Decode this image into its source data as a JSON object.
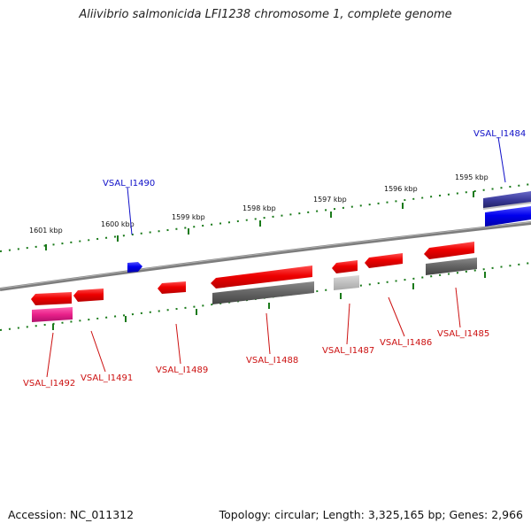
{
  "title": "Aliivibrio salmonicida LFI1238 chromosome 1, complete genome",
  "footer": {
    "accession": "Accession: NC_011312",
    "summary": "Topology: circular; Length: 3,325,165 bp; Genes: 2,966"
  },
  "colors": {
    "forward_gene": "#0000ee",
    "forward_label": "#1010c8",
    "reverse_gene": "#e00000",
    "reverse_label": "#cc1010",
    "pseudo_gene": "#e0207a",
    "backbone": "#808080",
    "ticks": "#1a7a1a"
  },
  "scale_ticks": [
    "1601 kbp",
    "1600 kbp",
    "1599 kbp",
    "1598 kbp",
    "1597 kbp",
    "1596 kbp",
    "1595 kbp"
  ],
  "gene_labels": {
    "forward": [
      "VSAL_I1490",
      "VSAL_I1484"
    ],
    "reverse": [
      "VSAL_I1492",
      "VSAL_I1491",
      "VSAL_I1489",
      "VSAL_I1488",
      "VSAL_I1487",
      "VSAL_I1486",
      "VSAL_I1485"
    ]
  }
}
